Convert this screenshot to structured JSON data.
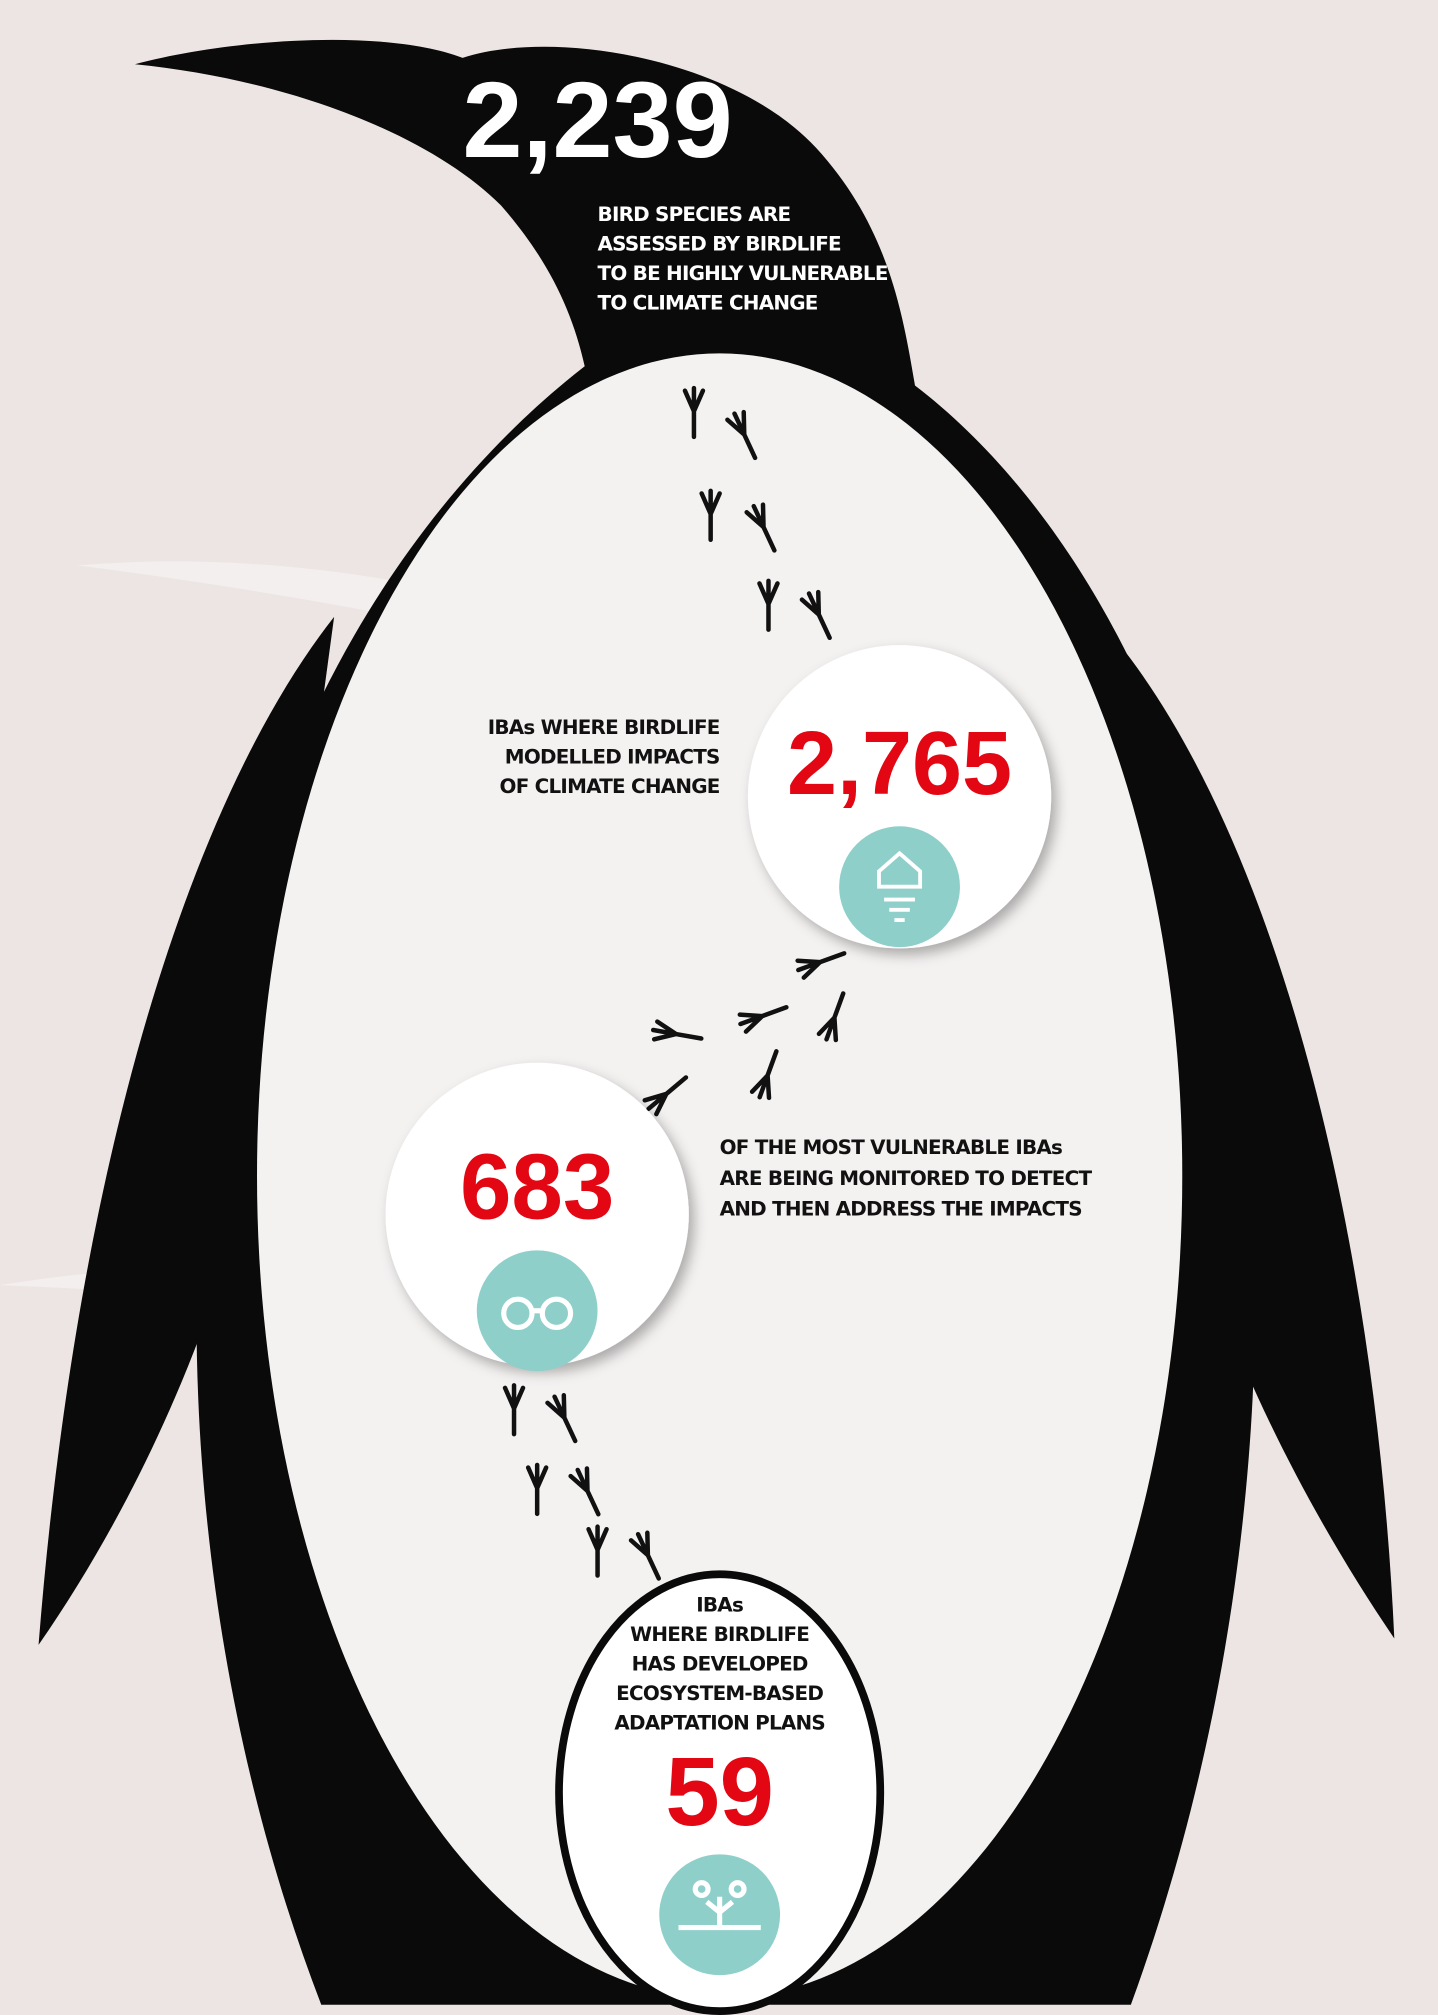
{
  "stats": [
    {
      "value": "2,239",
      "description": [
        "BIRD SPECIES ARE",
        "ASSESSED BY BIRDLIFE",
        "TO BE HIGHLY VULNERABLE",
        "TO CLIMATE CHANGE"
      ]
    },
    {
      "value": "2,765",
      "description": [
        "IBAs WHERE BIRDLIFE",
        "MODELLED IMPACTS",
        "OF CLIMATE CHANGE"
      ]
    },
    {
      "value": "683",
      "description": [
        "OF THE MOST VULNERABLE IBAs",
        "ARE BEING MONITORED TO DETECT",
        "AND THEN ADDRESS THE IMPACTS"
      ]
    },
    {
      "value": "59",
      "description": [
        "IBAs",
        "WHERE BIRDLIFE",
        "HAS DEVELOPED",
        "ECOSYSTEM-BASED",
        "ADAPTATION PLANS"
      ]
    }
  ]
}
